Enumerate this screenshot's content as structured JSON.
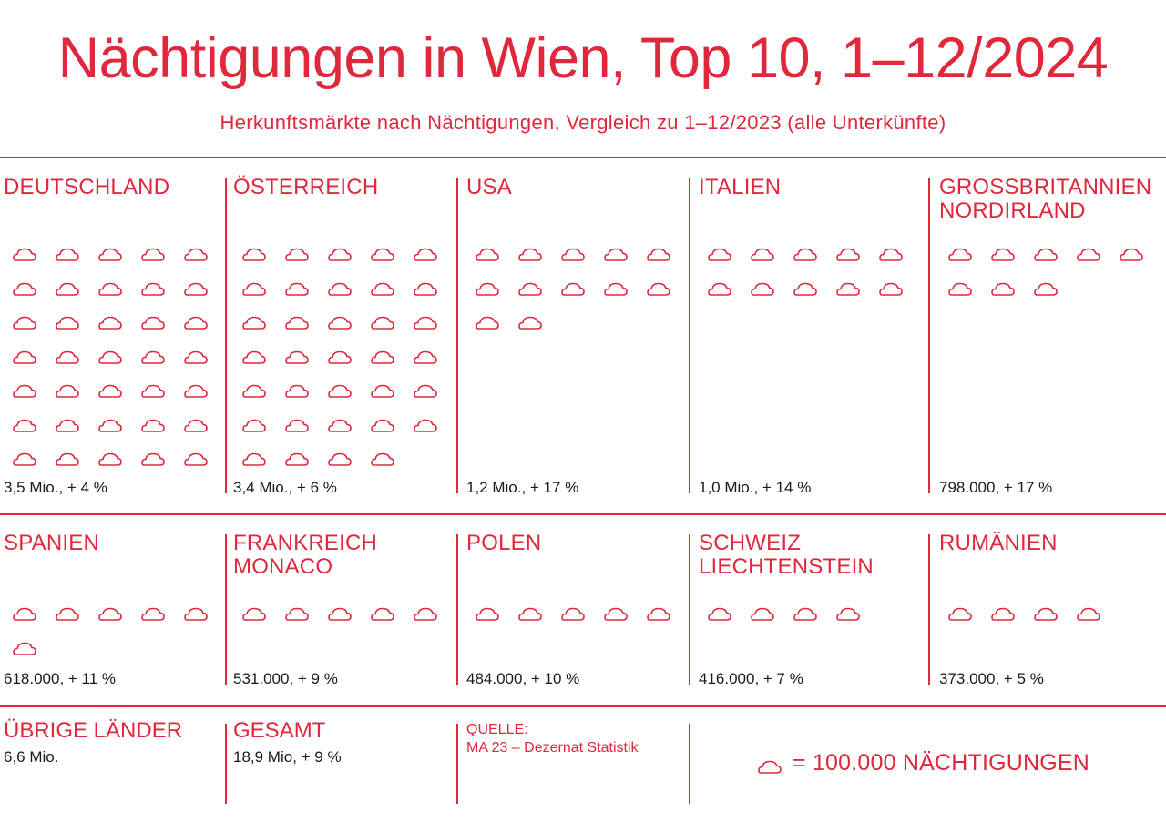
{
  "title": "Nächtigungen in Wien, Top 10, 1–12/2024",
  "subtitle": "Herkunftsmärkte nach Nächtigungen, Vergleich zu 1–12/2023 (alle Unterkünfte)",
  "colors": {
    "accent": "#e0283c",
    "text": "#1a1a1a"
  },
  "icon": "moon-cloud-icon",
  "chart_data": {
    "type": "pictogram",
    "unit_value": 100000,
    "unit_label": "= 100.000 NÄCHTIGUNGEN",
    "countries": [
      {
        "name": "DEUTSCHLAND",
        "icons": 35,
        "value_label": "3,5 Mio., + 4 %"
      },
      {
        "name": "ÖSTERREICH",
        "icons": 34,
        "value_label": "3,4 Mio., + 6 %"
      },
      {
        "name": "USA",
        "icons": 12,
        "value_label": "1,2 Mio., + 17 %"
      },
      {
        "name": "ITALIEN",
        "icons": 10,
        "value_label": "1,0 Mio., + 14 %"
      },
      {
        "name": "GROSSBRITANNIEN\nNORDIRLAND",
        "icons": 8,
        "value_label": "798.000, + 17 %"
      },
      {
        "name": "SPANIEN",
        "icons": 6,
        "value_label": "618.000, + 11 %"
      },
      {
        "name": "FRANKREICH\nMONACO",
        "icons": 5,
        "value_label": "531.000, + 9 %"
      },
      {
        "name": "POLEN",
        "icons": 5,
        "value_label": "484.000, + 10 %"
      },
      {
        "name": "SCHWEIZ\nLIECHTENSTEIN",
        "icons": 4,
        "value_label": "416.000, + 7 %"
      },
      {
        "name": "RUMÄNIEN",
        "icons": 4,
        "value_label": "373.000, + 5 %"
      }
    ]
  },
  "bottom": {
    "others": {
      "name": "ÜBRIGE LÄNDER",
      "value": "6,6 Mio."
    },
    "total": {
      "name": "GESAMT",
      "value": "18,9 Mio, + 9 %"
    },
    "source": {
      "label": "QUELLE:",
      "text": "MA 23 – Dezernat Statistik"
    }
  }
}
